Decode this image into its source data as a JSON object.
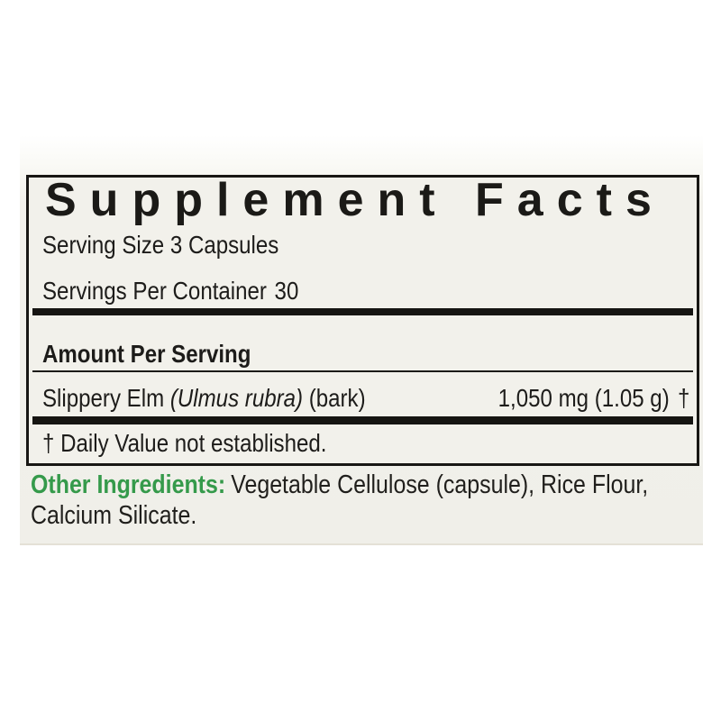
{
  "colors": {
    "accent_green": "#359a4b",
    "text_black": "#1d1c1a",
    "panel_background": "#f2f1eb",
    "page_background": "#ffffff",
    "divider_black": "#161512"
  },
  "panel": {
    "title": "Supplement Facts",
    "serving_size": "Serving Size 3 Capsules",
    "servings_per_container": {
      "label": "Servings Per Container",
      "value": "30"
    },
    "amount_per_serving": "Amount Per Serving",
    "ingredient": {
      "name": "Slippery Elm",
      "botanical_name": "(Ulmus rubra)",
      "plant_part": "(bark)",
      "amount": "1,050 mg (1.05 g)",
      "daily_value_symbol": "†"
    },
    "footnote": "† Daily Value not established."
  },
  "other_ingredients": {
    "label": "Other Ingredients:",
    "line1": "Vegetable Cellulose (capsule), Rice Flour,",
    "line2": "Calcium Silicate."
  }
}
